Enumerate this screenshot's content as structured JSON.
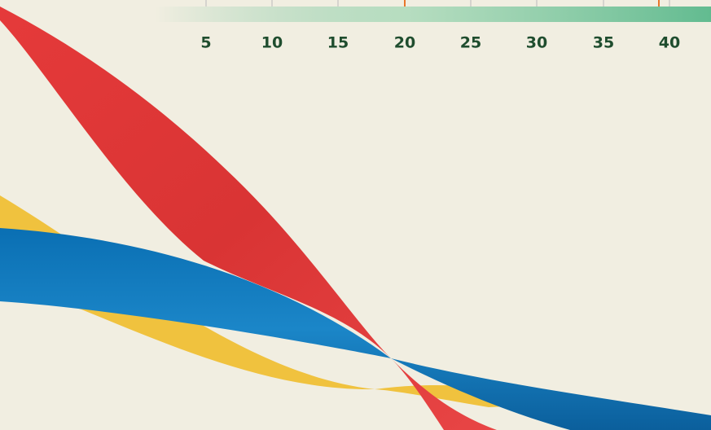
{
  "ruler": {
    "labels": [
      "5",
      "10",
      "15",
      "20",
      "25",
      "30",
      "35",
      "40"
    ]
  }
}
